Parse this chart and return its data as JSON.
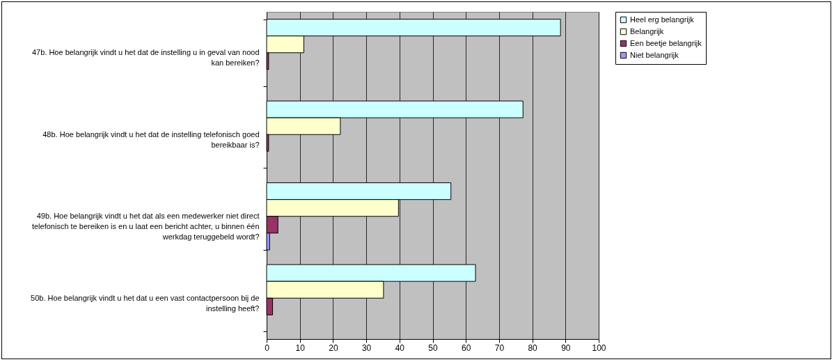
{
  "chart_data": {
    "type": "bar",
    "orientation": "horizontal",
    "categories": [
      "47b. Hoe belangrijk vindt u het dat de instelling u in geval van nood kan bereiken?",
      "48b. Hoe belangrijk vindt u het dat de instelling telefonisch goed bereikbaar is?",
      "49b. Hoe belangrijk vindt u het dat als een medewerker niet direct telefonisch te bereiken is en u laat een bericht achter, u binnen één werkdag teruggebeld wordt?",
      "50b. Hoe belangrijk vindt u het dat u een vast contactpersoon bij de instelling heeft?"
    ],
    "series": [
      {
        "name": "Heel erg belangrijk",
        "color": "#ccffff",
        "values": [
          88.5,
          77.2,
          55.5,
          62.9
        ]
      },
      {
        "name": "Belangrijk",
        "color": "#ffffcc",
        "values": [
          11.2,
          22.2,
          39.7,
          35.2
        ]
      },
      {
        "name": "Een beetje belangrijk",
        "color": "#993366",
        "values": [
          0.6,
          0.6,
          3.4,
          1.8
        ]
      },
      {
        "name": "Niet belangrijk",
        "color": "#9999ff",
        "values": [
          null,
          null,
          0.9,
          null
        ]
      }
    ],
    "xlim": [
      0,
      100
    ],
    "xticks": [
      0,
      10,
      20,
      30,
      40,
      50,
      60,
      70,
      80,
      90,
      100
    ],
    "grid": "x",
    "legend": "right"
  }
}
